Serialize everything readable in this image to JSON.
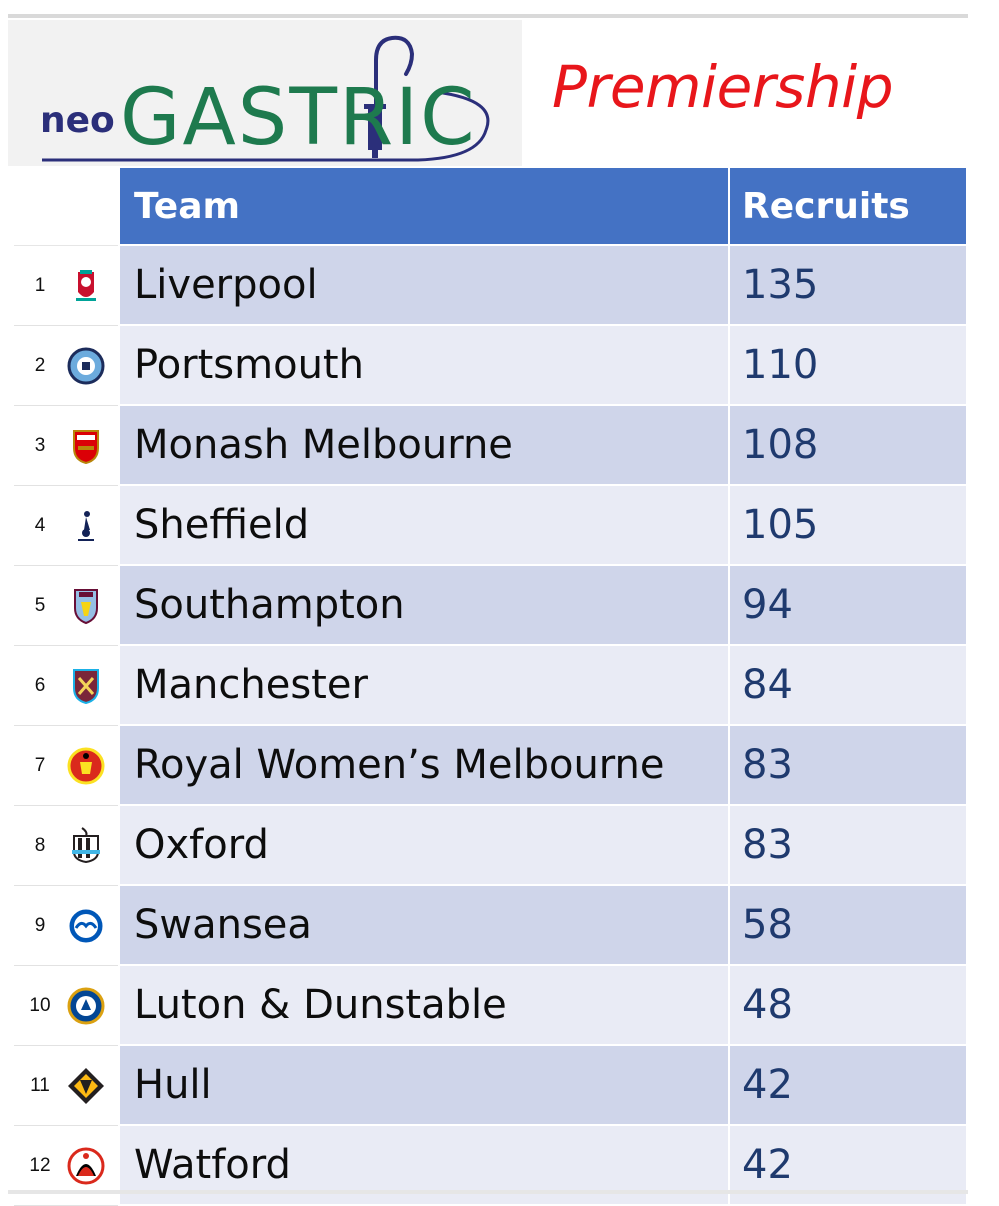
{
  "brand": {
    "logo_prefix": "neo",
    "logo_main": "GASTRIC",
    "colors": {
      "prefix": "#2b2f7a",
      "main": "#1e7a4e",
      "accent": "#2b2f7a"
    }
  },
  "league": {
    "title": "Premiership",
    "color": "#e8161b"
  },
  "table": {
    "headers": {
      "team": "Team",
      "recruits": "Recruits"
    },
    "header_color": "#4472c4",
    "rows": [
      {
        "rank": "1",
        "team": "Liverpool",
        "recruits": "135",
        "crest_icon": "liverbird-crest-icon"
      },
      {
        "rank": "2",
        "team": "Portsmouth",
        "recruits": "110",
        "crest_icon": "round-sky-blue-crest-icon"
      },
      {
        "rank": "3",
        "team": "Monash Melbourne",
        "recruits": "108",
        "crest_icon": "red-cannon-shield-icon"
      },
      {
        "rank": "4",
        "team": "Sheffield",
        "recruits": "105",
        "crest_icon": "cockerel-icon"
      },
      {
        "rank": "5",
        "team": " Southampton",
        "recruits": "94",
        "crest_icon": "claret-lion-shield-icon"
      },
      {
        "rank": "6",
        "team": "Manchester",
        "recruits": "84",
        "crest_icon": "hammers-shield-icon"
      },
      {
        "rank": "7",
        "team": "Royal Women’s Melbourne",
        "recruits": "83",
        "crest_icon": "red-devil-crest-icon"
      },
      {
        "rank": "8",
        "team": "Oxford",
        "recruits": "83",
        "crest_icon": "magpies-crest-icon"
      },
      {
        "rank": "9",
        "team": "Swansea",
        "recruits": "58",
        "crest_icon": "seagull-roundel-icon"
      },
      {
        "rank": "10",
        "team": "Luton & Dunstable",
        "recruits": "48",
        "crest_icon": "blue-lion-roundel-icon"
      },
      {
        "rank": "11",
        "team": "Hull",
        "recruits": "42",
        "crest_icon": "wolf-head-icon"
      },
      {
        "rank": "12",
        "team": "Watford",
        "recruits": "42",
        "crest_icon": "cherries-crest-icon"
      }
    ]
  }
}
